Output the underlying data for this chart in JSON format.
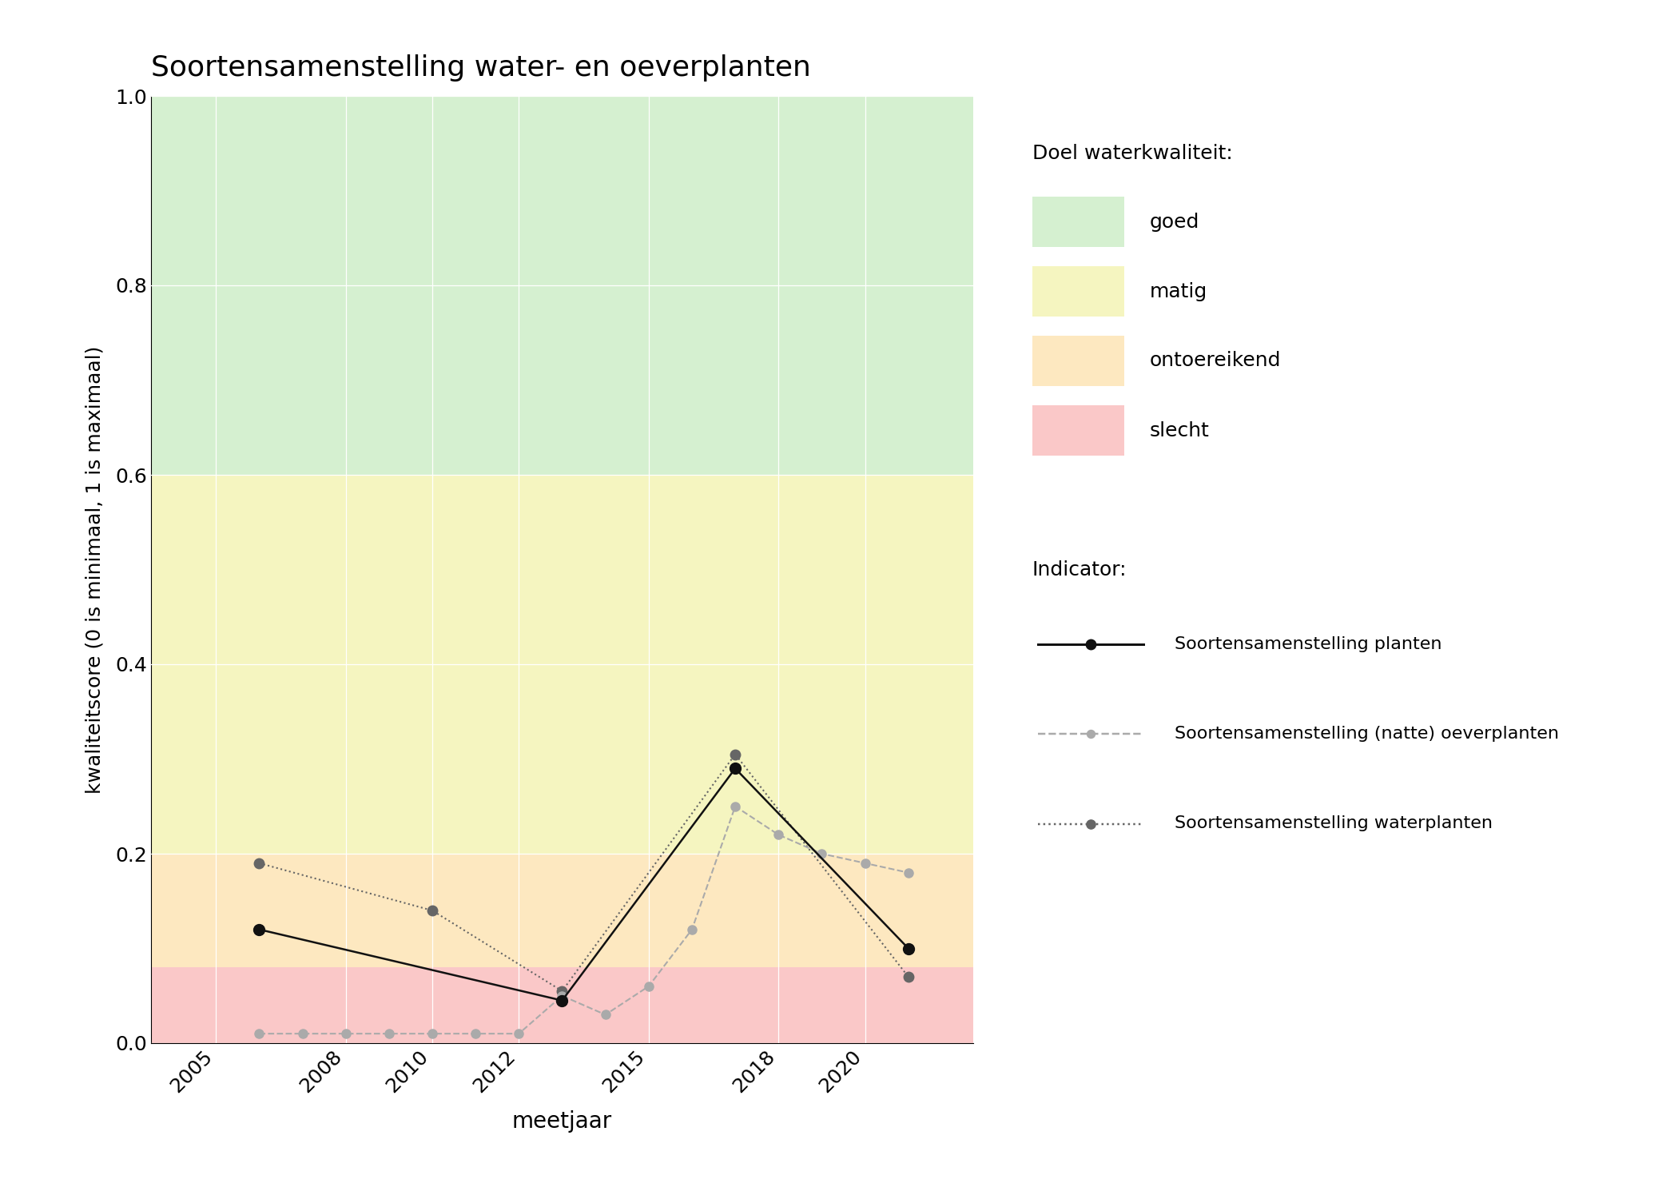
{
  "title": "Soortensamenstelling water- en oeverplanten",
  "xlabel": "meetjaar",
  "ylabel": "kwaliteitscore (0 is minimaal, 1 is maximaal)",
  "ylim": [
    0.0,
    1.0
  ],
  "xlim": [
    2003.5,
    2022.5
  ],
  "xticks": [
    2005,
    2008,
    2010,
    2012,
    2015,
    2018,
    2020
  ],
  "yticks": [
    0.0,
    0.2,
    0.4,
    0.6,
    0.8,
    1.0
  ],
  "background_color": "#ffffff",
  "quality_bands": [
    {
      "name": "goed",
      "ymin": 0.6,
      "ymax": 1.0,
      "color": "#d5f0d0"
    },
    {
      "name": "matig",
      "ymin": 0.2,
      "ymax": 0.6,
      "color": "#f5f5c0"
    },
    {
      "name": "ontoereikend",
      "ymin": 0.08,
      "ymax": 0.2,
      "color": "#fde8c0"
    },
    {
      "name": "slecht",
      "ymin": 0.0,
      "ymax": 0.08,
      "color": "#fac8c8"
    }
  ],
  "series": [
    {
      "key": "planten",
      "years": [
        2006,
        2013,
        2017,
        2021
      ],
      "values": [
        0.12,
        0.045,
        0.29,
        0.1
      ],
      "color": "#111111",
      "linestyle": "-",
      "marker": "o",
      "markersize": 10,
      "linewidth": 1.8,
      "label": "Soortensamenstelling planten",
      "zorder": 5
    },
    {
      "key": "oeverplanten",
      "years": [
        2006,
        2007,
        2008,
        2009,
        2010,
        2011,
        2012,
        2013,
        2014,
        2015,
        2016,
        2017,
        2018,
        2019,
        2020,
        2021
      ],
      "values": [
        0.01,
        0.01,
        0.01,
        0.01,
        0.01,
        0.01,
        0.01,
        0.05,
        0.03,
        0.06,
        0.12,
        0.25,
        0.22,
        0.2,
        0.19,
        0.18
      ],
      "color": "#aaaaaa",
      "linestyle": "--",
      "marker": "o",
      "markersize": 8,
      "linewidth": 1.5,
      "label": "Soortensamenstelling (natte) oeverplanten",
      "zorder": 4
    },
    {
      "key": "waterplanten",
      "years": [
        2006,
        2010,
        2013,
        2017,
        2021
      ],
      "values": [
        0.19,
        0.14,
        0.055,
        0.305,
        0.07
      ],
      "color": "#666666",
      "linestyle": ":",
      "marker": "o",
      "markersize": 9,
      "linewidth": 1.5,
      "label": "Soortensamenstelling waterplanten",
      "zorder": 3
    }
  ],
  "legend_title_doel": "Doel waterkwaliteit:",
  "legend_title_indicator": "Indicator:",
  "figsize": [
    21.0,
    15.0
  ],
  "dpi": 100
}
